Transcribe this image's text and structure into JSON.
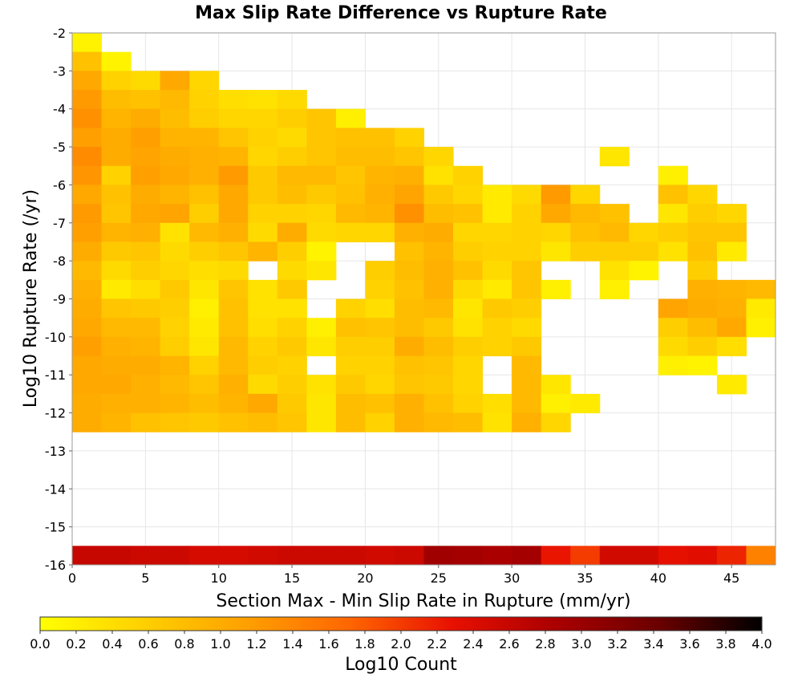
{
  "chart_data": {
    "type": "heatmap",
    "title": "Max Slip Rate Difference vs Rupture Rate",
    "xlabel": "Section Max - Min Slip Rate in Rupture (mm/yr)",
    "ylabel": "Log10 Rupture Rate (/yr)",
    "xlim": [
      0,
      48
    ],
    "ylim": [
      -16,
      -2
    ],
    "x_bin_width": 2,
    "y_bin_height": 0.5,
    "x_ticks": [
      "0",
      "5",
      "10",
      "15",
      "20",
      "25",
      "30",
      "35",
      "40",
      "45"
    ],
    "y_ticks": [
      "-2",
      "-3",
      "-4",
      "-5",
      "-6",
      "-7",
      "-8",
      "-9",
      "-10",
      "-11",
      "-12",
      "-13",
      "-14",
      "-15",
      "-16"
    ],
    "grid": true,
    "legend_title": "Log10 Count",
    "legend_range": [
      0,
      4
    ],
    "legend_ticks": [
      "0.0",
      "0.2",
      "0.4",
      "0.6",
      "0.8",
      "1.0",
      "1.2",
      "1.4",
      "1.6",
      "1.8",
      "2.0",
      "2.2",
      "2.4",
      "2.6",
      "2.8",
      "3.0",
      "3.2",
      "3.4",
      "3.6",
      "3.8",
      "4.0"
    ],
    "colorscale": [
      "#ffff00",
      "#ffd000",
      "#ffa000",
      "#ff6600",
      "#e81000",
      "#aa0000",
      "#6a0000",
      "#000000"
    ],
    "row_y_starts": [
      -2.5,
      -3.0,
      -3.5,
      -4.0,
      -4.5,
      -5.0,
      -5.5,
      -6.0,
      -6.5,
      -7.0,
      -7.5,
      -8.0,
      -8.5,
      -9.0,
      -9.5,
      -10.0,
      -10.5,
      -11.0,
      -11.5,
      -12.0,
      -12.5,
      -16.0
    ],
    "values": [
      [
        0.15,
        null,
        null,
        null,
        null,
        null,
        null,
        null,
        null,
        null,
        null,
        null,
        null,
        null,
        null,
        null,
        null,
        null,
        null,
        null,
        null,
        null,
        null,
        null
      ],
      [
        0.75,
        0.15,
        null,
        null,
        null,
        null,
        null,
        null,
        null,
        null,
        null,
        null,
        null,
        null,
        null,
        null,
        null,
        null,
        null,
        null,
        null,
        null,
        null,
        null
      ],
      [
        1.05,
        0.55,
        0.45,
        1.05,
        0.5,
        null,
        null,
        null,
        null,
        null,
        null,
        null,
        null,
        null,
        null,
        null,
        null,
        null,
        null,
        null,
        null,
        null,
        null,
        null
      ],
      [
        1.2,
        0.8,
        0.75,
        0.85,
        0.55,
        0.4,
        0.35,
        0.45,
        null,
        null,
        null,
        null,
        null,
        null,
        null,
        null,
        null,
        null,
        null,
        null,
        null,
        null,
        null,
        null
      ],
      [
        1.3,
        0.9,
        1.0,
        0.8,
        0.6,
        0.5,
        0.5,
        0.6,
        0.7,
        0.2,
        null,
        null,
        null,
        null,
        null,
        null,
        null,
        null,
        null,
        null,
        null,
        null,
        null,
        null
      ],
      [
        1.15,
        1.0,
        1.15,
        0.9,
        0.9,
        0.7,
        0.55,
        0.45,
        0.7,
        0.75,
        0.75,
        0.55,
        null,
        null,
        null,
        null,
        null,
        null,
        null,
        null,
        null,
        null,
        null,
        null
      ],
      [
        1.35,
        1.0,
        1.1,
        1.0,
        0.95,
        0.9,
        0.5,
        0.6,
        0.7,
        0.8,
        0.8,
        0.7,
        0.5,
        null,
        null,
        null,
        null,
        null,
        0.3,
        null,
        null,
        null,
        null,
        null
      ],
      [
        1.25,
        0.55,
        1.15,
        1.05,
        0.95,
        1.2,
        0.65,
        0.85,
        0.85,
        0.7,
        0.9,
        0.95,
        0.35,
        0.55,
        null,
        null,
        null,
        null,
        null,
        null,
        0.2,
        null,
        null,
        null
      ],
      [
        1.05,
        0.75,
        1.0,
        0.9,
        0.75,
        1.05,
        0.65,
        0.8,
        0.65,
        0.75,
        0.95,
        1.1,
        0.65,
        0.5,
        0.25,
        0.45,
        1.2,
        0.5,
        null,
        null,
        0.75,
        0.5,
        null,
        null
      ],
      [
        1.2,
        0.7,
        1.05,
        1.1,
        0.6,
        1.05,
        0.55,
        0.55,
        0.5,
        0.85,
        0.9,
        1.3,
        0.8,
        0.75,
        0.25,
        0.55,
        1.05,
        0.85,
        0.75,
        null,
        0.3,
        0.6,
        0.5,
        null
      ],
      [
        1.15,
        0.9,
        0.95,
        0.35,
        0.85,
        0.95,
        0.45,
        1.0,
        0.45,
        0.5,
        0.5,
        0.95,
        1.0,
        0.5,
        0.5,
        0.55,
        0.5,
        0.75,
        0.85,
        0.5,
        0.6,
        0.7,
        0.7,
        null
      ],
      [
        1.0,
        0.65,
        0.7,
        0.45,
        0.6,
        0.7,
        0.9,
        0.6,
        0.15,
        null,
        null,
        0.75,
        0.9,
        0.6,
        0.55,
        0.55,
        0.3,
        0.6,
        0.6,
        0.6,
        0.35,
        0.75,
        0.25,
        null
      ],
      [
        0.85,
        0.45,
        0.6,
        0.5,
        0.4,
        0.45,
        null,
        0.45,
        0.3,
        null,
        0.6,
        0.8,
        0.95,
        0.75,
        0.45,
        0.7,
        null,
        null,
        0.35,
        0.15,
        null,
        0.6,
        null,
        null
      ],
      [
        0.95,
        0.25,
        0.4,
        0.65,
        0.3,
        0.7,
        0.35,
        0.65,
        null,
        null,
        0.55,
        0.75,
        0.95,
        0.45,
        0.25,
        0.7,
        0.2,
        null,
        0.2,
        null,
        null,
        0.95,
        0.9,
        0.85
      ],
      [
        1.0,
        0.7,
        0.65,
        0.6,
        0.2,
        0.75,
        0.35,
        0.35,
        null,
        0.55,
        0.4,
        0.8,
        0.85,
        0.3,
        0.65,
        0.6,
        null,
        null,
        null,
        null,
        1.1,
        1.0,
        0.95,
        0.25
      ],
      [
        1.05,
        0.85,
        0.85,
        0.55,
        0.25,
        0.75,
        0.4,
        0.55,
        0.2,
        0.75,
        0.7,
        0.8,
        0.65,
        0.35,
        0.55,
        0.45,
        null,
        null,
        null,
        null,
        0.6,
        0.8,
        1.05,
        0.2
      ],
      [
        1.15,
        0.95,
        0.9,
        0.6,
        0.3,
        0.85,
        0.55,
        0.65,
        0.3,
        0.6,
        0.6,
        1.0,
        0.8,
        0.6,
        0.55,
        0.65,
        null,
        null,
        null,
        null,
        0.45,
        0.6,
        0.4,
        null
      ],
      [
        1.05,
        1.0,
        1.0,
        0.9,
        0.55,
        0.85,
        0.6,
        0.55,
        null,
        0.55,
        0.55,
        0.75,
        0.7,
        0.5,
        null,
        0.85,
        null,
        null,
        null,
        null,
        0.2,
        0.15,
        null,
        null
      ],
      [
        1.05,
        1.05,
        0.95,
        0.85,
        0.7,
        0.95,
        0.45,
        0.6,
        0.35,
        0.65,
        0.5,
        0.7,
        0.65,
        0.5,
        null,
        0.85,
        0.3,
        null,
        null,
        null,
        null,
        null,
        0.25,
        null
      ],
      [
        1.0,
        0.95,
        0.95,
        0.9,
        0.8,
        0.9,
        1.05,
        0.65,
        0.3,
        0.8,
        0.75,
        0.95,
        0.75,
        0.55,
        0.4,
        0.85,
        0.2,
        0.25,
        null,
        null,
        null,
        null,
        null,
        null
      ],
      [
        1.0,
        0.9,
        0.75,
        0.7,
        0.65,
        0.75,
        0.8,
        0.7,
        0.3,
        0.8,
        0.55,
        0.95,
        0.85,
        0.8,
        0.35,
        0.95,
        0.5,
        null,
        null,
        null,
        null,
        null,
        null,
        null
      ],
      [
        2.6,
        2.6,
        2.55,
        2.55,
        2.45,
        2.45,
        2.5,
        2.55,
        2.55,
        2.55,
        2.5,
        2.55,
        2.95,
        2.9,
        2.85,
        2.9,
        2.25,
        2.0,
        2.5,
        2.5,
        2.3,
        2.35,
        2.15,
        1.45
      ]
    ]
  }
}
